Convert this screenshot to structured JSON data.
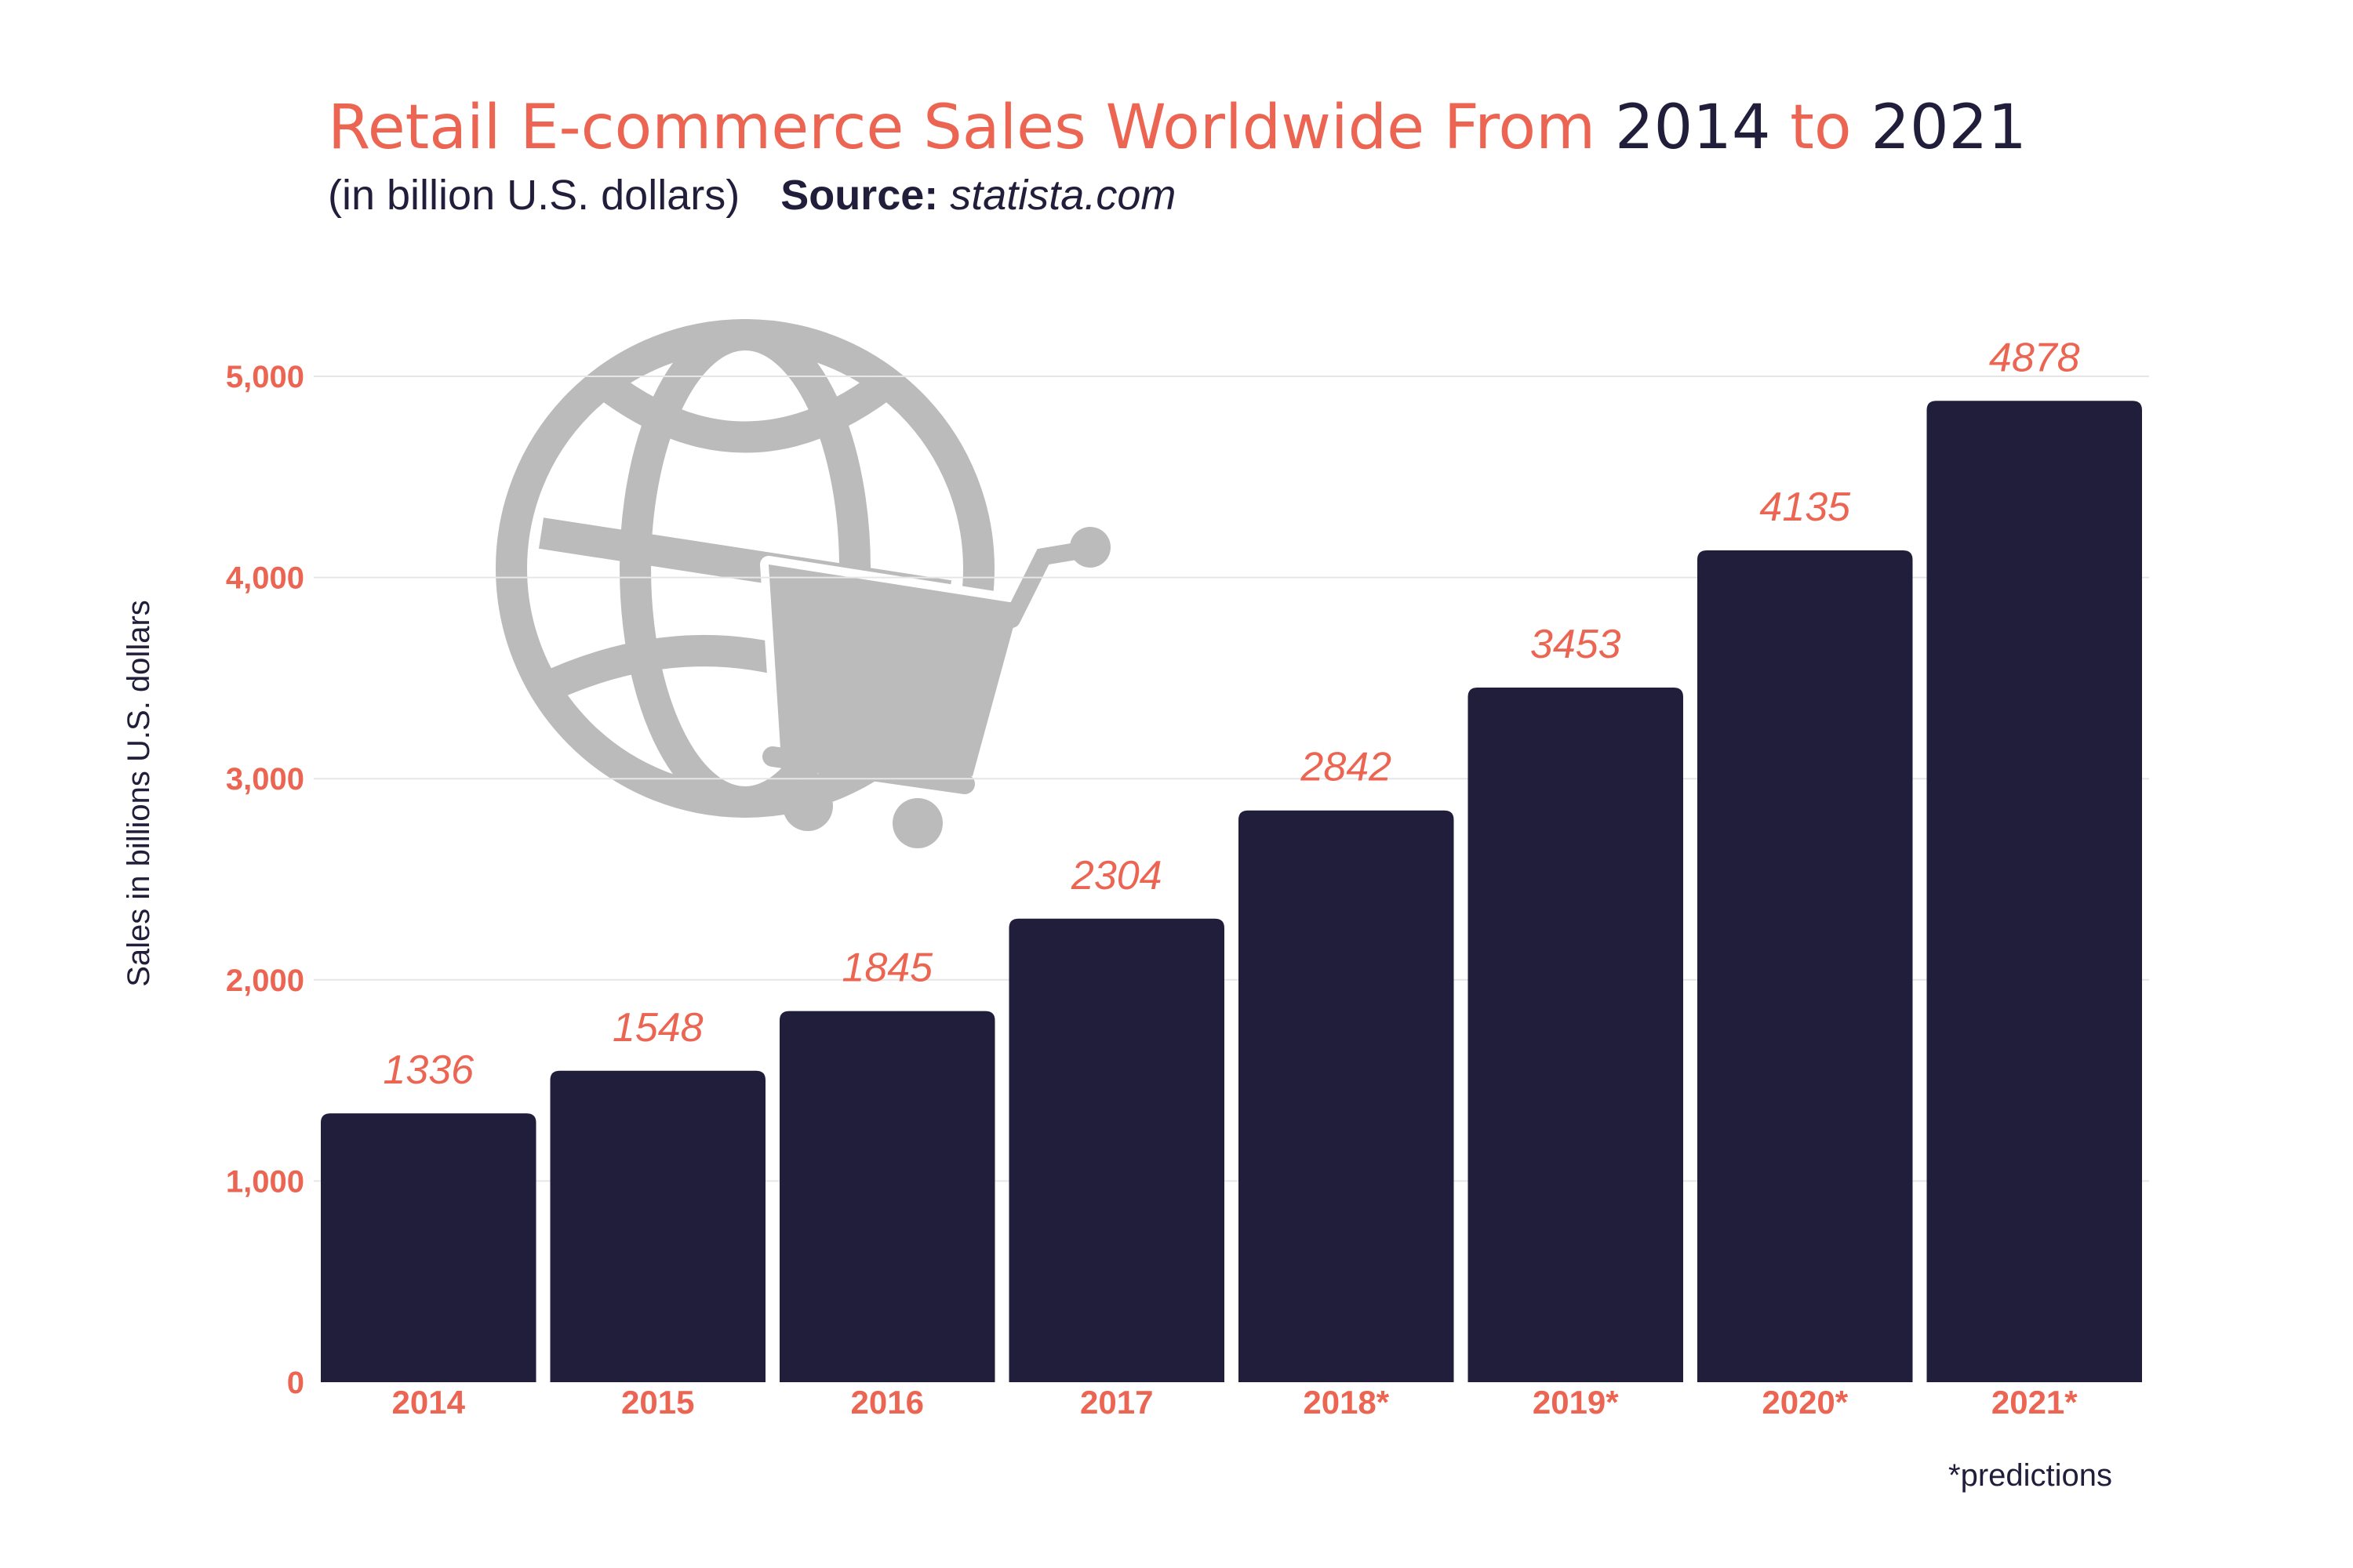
{
  "header": {
    "title_part1": "Retail E-commerce Sales Worldwide From ",
    "title_year_start": "2014",
    "title_connector": " to ",
    "title_year_end": "2021",
    "subtitle": "(in billion U.S. dollars)",
    "source_label": "Source:",
    "source_value": " statista.com"
  },
  "footnote": "*predictions",
  "chart_data": {
    "type": "bar",
    "title": "Retail E-commerce Sales Worldwide From 2014 to 2021",
    "subtitle": "(in billion U.S. dollars)",
    "ylabel": "Sales in billions U.S. dollars",
    "xlabel": "",
    "categories": [
      "2014",
      "2015",
      "2016",
      "2017",
      "2018*",
      "2019*",
      "2020*",
      "2021*"
    ],
    "values": [
      1336,
      1548,
      1845,
      2304,
      2842,
      3453,
      4135,
      4878
    ],
    "data_labels": [
      "1336",
      "1548",
      "1845",
      "2304",
      "2842",
      "3453",
      "4135",
      "4878"
    ],
    "ylim": [
      0,
      5000
    ],
    "yticks": [
      0,
      1000,
      2000,
      3000,
      4000,
      5000
    ],
    "ytick_labels": [
      "0",
      "1,000",
      "2,000",
      "3,000",
      "4,000",
      "5,000"
    ],
    "grid": true,
    "legend": "none",
    "colors": {
      "bar": "#201e3a",
      "accent": "#eb6552",
      "grid": "#e6e6e6",
      "watermark": "#bbbbbb"
    },
    "decoration_icon": "globe-shopping-cart-icon"
  }
}
